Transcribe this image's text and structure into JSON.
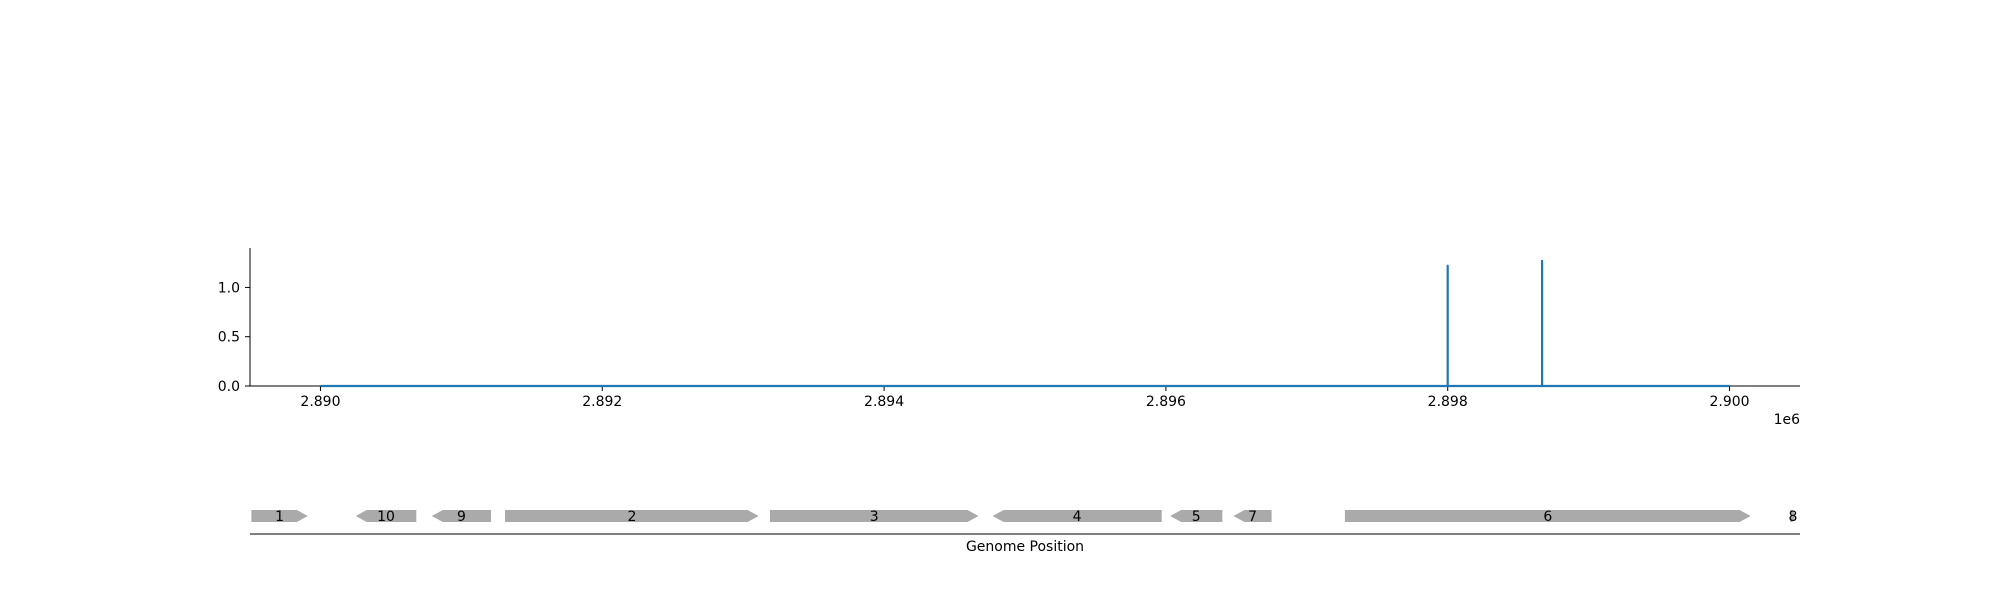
{
  "chart_data": [
    {
      "type": "line",
      "title": "",
      "xlabel": "",
      "ylabel": "",
      "x_offset_label": "1e6",
      "xlim": [
        2889500,
        2900500
      ],
      "ylim": [
        0,
        1.4
      ],
      "x_ticks": [
        2890000,
        2892000,
        2894000,
        2896000,
        2898000,
        2900000
      ],
      "x_tick_labels": [
        "2.890",
        "2.892",
        "2.894",
        "2.896",
        "2.898",
        "2.900"
      ],
      "y_ticks": [
        0,
        0.5,
        1.0
      ],
      "y_tick_labels": [
        "0.0",
        "0.5",
        "1.0"
      ],
      "grid": false,
      "color": "#1f77b4",
      "series": [
        {
          "x": [
            2890000,
            2898000,
            2898000,
            2898000,
            2898670,
            2898670,
            2898670,
            2900000
          ],
          "y": [
            0,
            0,
            1.22,
            0,
            0,
            1.27,
            0,
            0
          ]
        }
      ]
    },
    {
      "type": "gene-map",
      "xlabel": "Genome Position",
      "color": "#aaaaaa",
      "genes": [
        {
          "label": "1",
          "start": 2889510,
          "end": 2889910,
          "strand": "+"
        },
        {
          "label": "10",
          "start": 2890250,
          "end": 2890680,
          "strand": "-"
        },
        {
          "label": "9",
          "start": 2890790,
          "end": 2891210,
          "strand": "-"
        },
        {
          "label": "2",
          "start": 2891310,
          "end": 2893110,
          "strand": "+"
        },
        {
          "label": "3",
          "start": 2893190,
          "end": 2894670,
          "strand": "+"
        },
        {
          "label": "4",
          "start": 2894770,
          "end": 2895970,
          "strand": "-"
        },
        {
          "label": "5",
          "start": 2896030,
          "end": 2896400,
          "strand": "-"
        },
        {
          "label": "7",
          "start": 2896480,
          "end": 2896750,
          "strand": "-"
        },
        {
          "label": "6",
          "start": 2897270,
          "end": 2900150,
          "strand": "+"
        },
        {
          "label": "8",
          "start": 2900430,
          "end": 2900470,
          "strand": "+"
        }
      ]
    }
  ]
}
